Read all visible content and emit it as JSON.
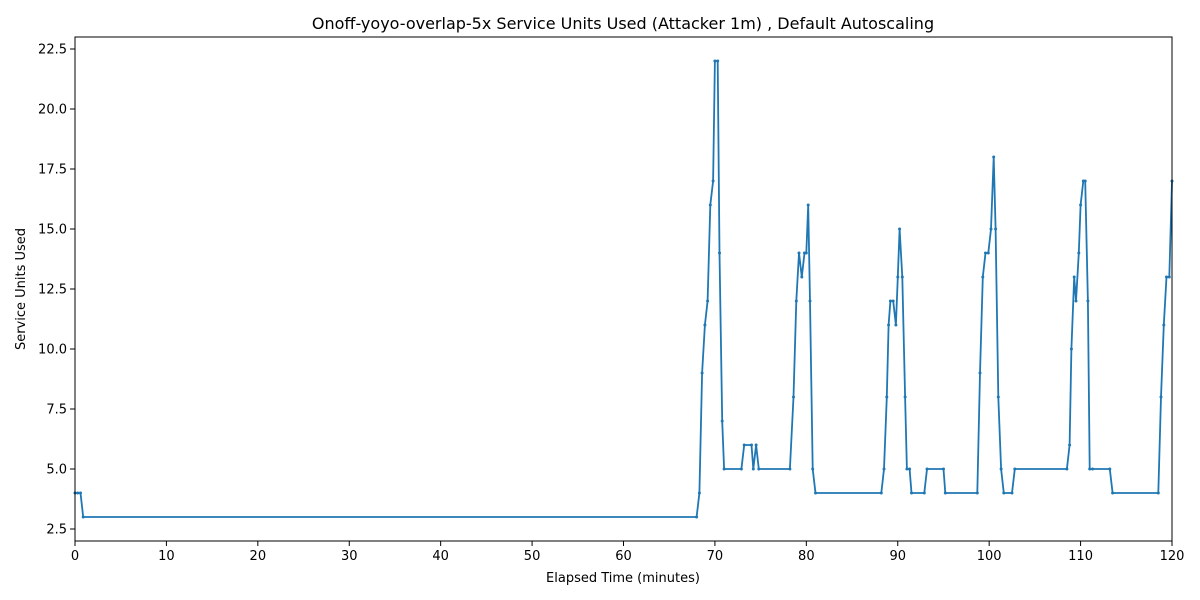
{
  "chart_data": {
    "type": "line",
    "title": "Onoff-yoyo-overlap-5x Service Units Used (Attacker 1m) , Default Autoscaling",
    "xlabel": "Elapsed Time (minutes)",
    "ylabel": "Service Units Used",
    "xlim": [
      0,
      120
    ],
    "ylim": [
      2.0,
      23.0
    ],
    "xticks": [
      0,
      10,
      20,
      30,
      40,
      50,
      60,
      70,
      80,
      90,
      100,
      110,
      120
    ],
    "yticks": [
      2.5,
      5.0,
      7.5,
      10.0,
      12.5,
      15.0,
      17.5,
      20.0,
      22.5
    ],
    "ytick_labels": [
      "2.5",
      "5.0",
      "7.5",
      "10.0",
      "12.5",
      "15.0",
      "17.5",
      "20.0",
      "22.5"
    ],
    "grid": false,
    "legend": "none",
    "series_color": "#1f77b4",
    "series": [
      {
        "x": [
          0,
          0.3,
          0.6,
          0.9,
          68.0,
          68.3,
          68.6,
          68.9,
          69.2,
          69.5,
          69.8,
          70.0,
          70.3,
          70.5,
          70.8,
          71.0,
          72.9,
          73.2,
          74.0,
          74.2,
          74.5,
          74.8,
          78.2,
          78.6,
          78.9,
          79.2,
          79.5,
          79.8,
          80.0,
          80.2,
          80.4,
          80.7,
          81.0,
          88.2,
          88.5,
          88.8,
          89.0,
          89.2,
          89.5,
          89.8,
          90.0,
          90.2,
          90.5,
          90.8,
          91.0,
          91.3,
          91.5,
          92.9,
          93.2,
          95.0,
          95.2,
          98.7,
          99.0,
          99.3,
          99.6,
          99.9,
          100.2,
          100.5,
          100.7,
          101.0,
          101.3,
          101.6,
          102.5,
          102.8,
          108.5,
          108.8,
          109.0,
          109.3,
          109.5,
          109.8,
          110.0,
          110.3,
          110.5,
          110.8,
          111.0,
          111.3,
          113.2,
          113.5,
          118.5,
          118.8,
          119.1,
          119.4,
          119.7,
          120.0
        ],
        "y": [
          4,
          4,
          4,
          3,
          3,
          4,
          9,
          11,
          12,
          16,
          17,
          22,
          22,
          14,
          7,
          5,
          5,
          6,
          6,
          5,
          6,
          5,
          5,
          8,
          12,
          14,
          13,
          14,
          14,
          16,
          12,
          5,
          4,
          4,
          5,
          8,
          11,
          12,
          12,
          11,
          13,
          15,
          13,
          8,
          5,
          5,
          4,
          4,
          5,
          5,
          4,
          4,
          9,
          13,
          14,
          14,
          15,
          18,
          15,
          8,
          5,
          4,
          4,
          5,
          5,
          6,
          10,
          13,
          12,
          14,
          16,
          17,
          17,
          12,
          5,
          5,
          5,
          4,
          4,
          8,
          11,
          13,
          13,
          17
        ]
      }
    ]
  }
}
